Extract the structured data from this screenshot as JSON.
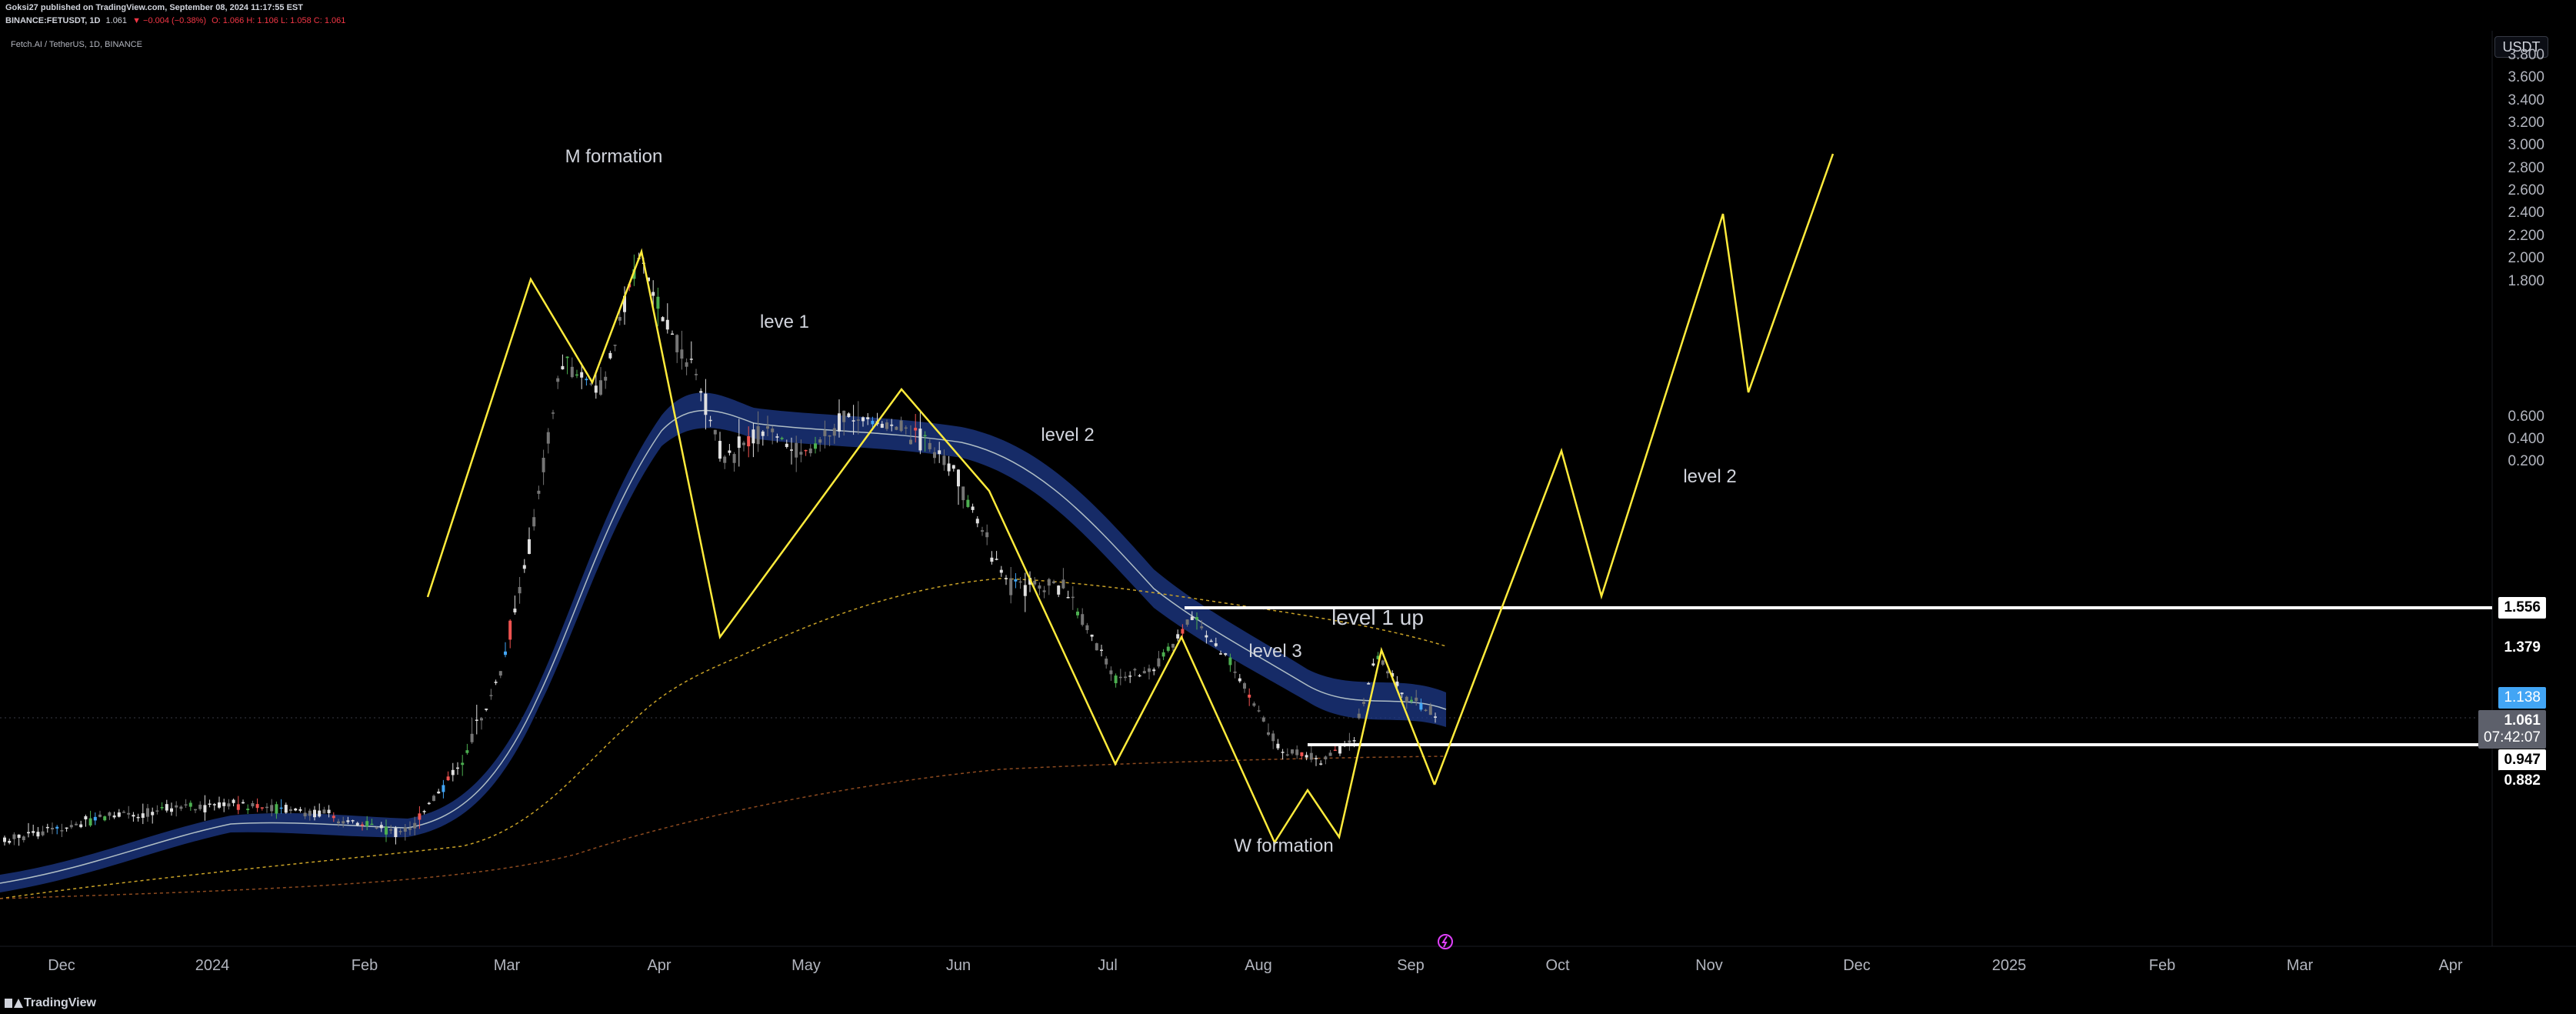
{
  "header": {
    "line1": "Goksi27 published on TradingView.com, September 08, 2024 11:17:55 EST",
    "line2_symbol": "BINANCE:FETUSDT, 1D",
    "line2_last": "1.061",
    "line2_change": "▼ −0.004 (−0.38%)",
    "line2_ohlc": "O: 1.066 H: 1.106 L: 1.058 C: 1.061"
  },
  "symbol_title": "Fetch.AI / TetherUS, 1D, BINANCE",
  "currency_button": "USDT",
  "annotations": {
    "m_formation": "M formation",
    "leve1": "leve 1",
    "level2_left": "level 2",
    "level2_right": "level 2",
    "level1_up": "level 1 up",
    "level3": "level 3",
    "w_formation": "W formation"
  },
  "price_axis": [
    "3.800",
    "3.600",
    "3.400",
    "3.200",
    "3.000",
    "2.800",
    "2.600",
    "2.400",
    "2.200",
    "2.000",
    "1.800",
    "1.379",
    "0.882",
    "0.600",
    "0.400",
    "0.200"
  ],
  "price_tags": {
    "upper_level": "1.556",
    "ma_value": "1.138",
    "last_price": "1.061",
    "countdown": "07:42:07",
    "lower_level": "0.947",
    "marker_1379": "1.379",
    "marker_0882": "0.882"
  },
  "time_axis": [
    "Dec",
    "2024",
    "Feb",
    "Mar",
    "Apr",
    "May",
    "Jun",
    "Jul",
    "Aug",
    "Sep",
    "Oct",
    "Nov",
    "Dec",
    "2025",
    "Feb",
    "Mar",
    "Apr"
  ],
  "footer": {
    "brand": "TradingView"
  },
  "colors": {
    "background": "#000000",
    "up": "#089981",
    "down": "#f23645",
    "ribbon": "#1e3a8a",
    "zigzag": "#ffeb3b",
    "level": "#ffffff"
  }
}
